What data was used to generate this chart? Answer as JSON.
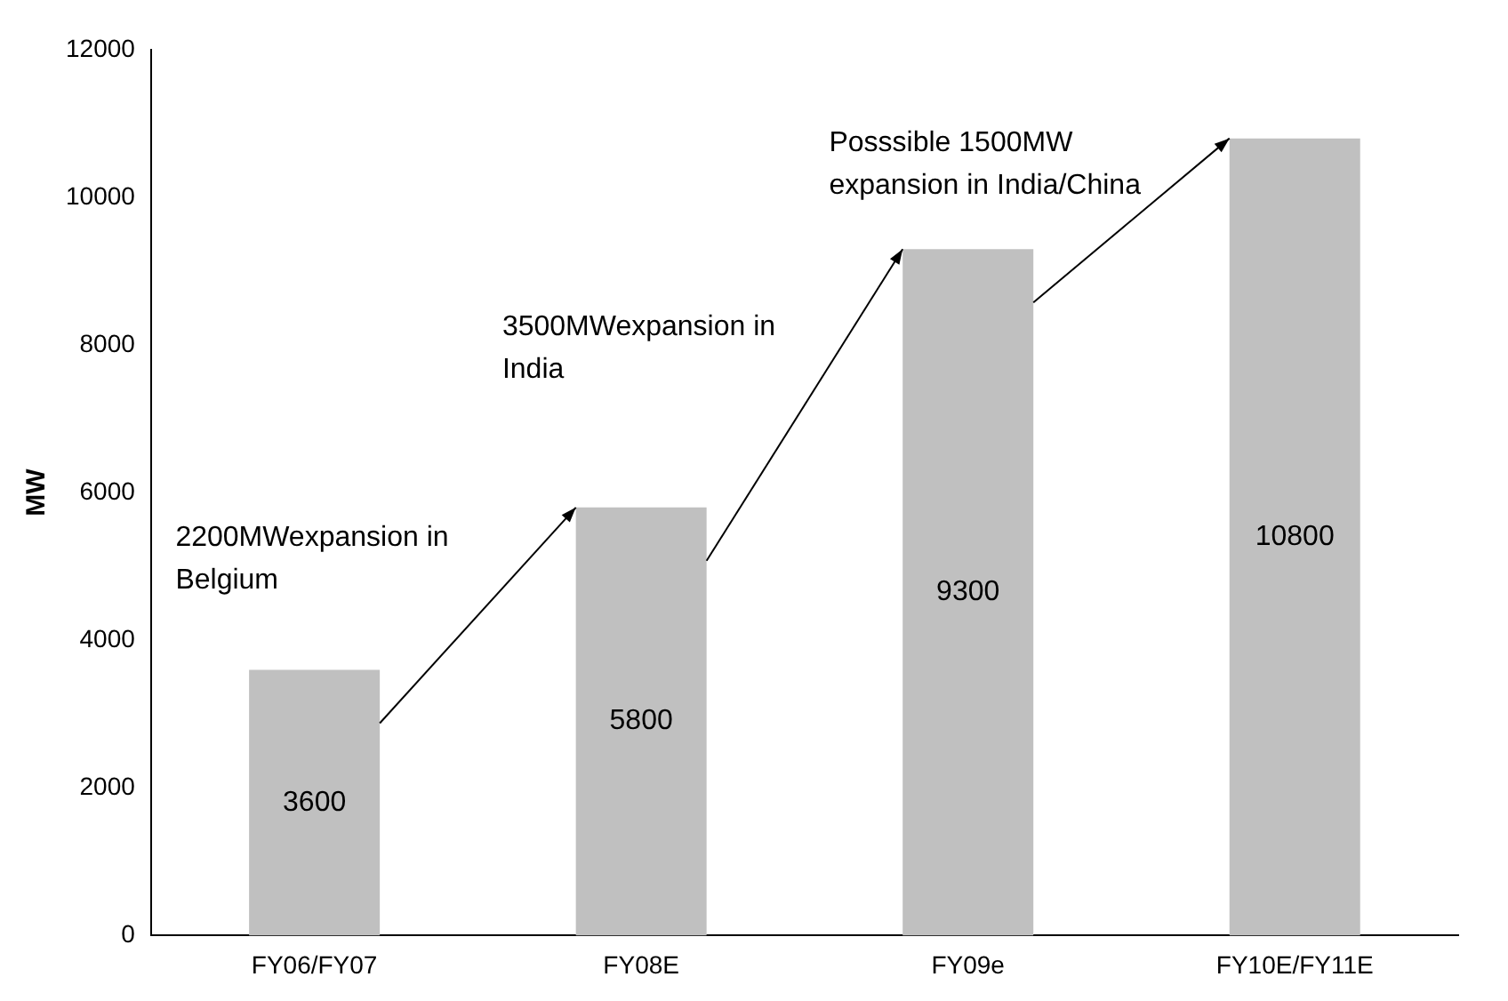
{
  "chart_data": {
    "type": "bar",
    "ylabel": "MW",
    "categories": [
      "FY06/FY07",
      "FY08E",
      "FY09e",
      "FY10E/FY11E"
    ],
    "values": [
      3600,
      5800,
      9300,
      10800
    ],
    "color": "#c0c0c0",
    "ylim": [
      0,
      12000
    ],
    "yticks": [
      0,
      2000,
      4000,
      6000,
      8000,
      10000,
      12000
    ],
    "grid": false,
    "legend": false,
    "data_labels": true,
    "annotations": [
      "2200MWexpansion in Belgium",
      "3500MWexpansion in India",
      "Posssible 1500MW expansion in India/China"
    ]
  }
}
